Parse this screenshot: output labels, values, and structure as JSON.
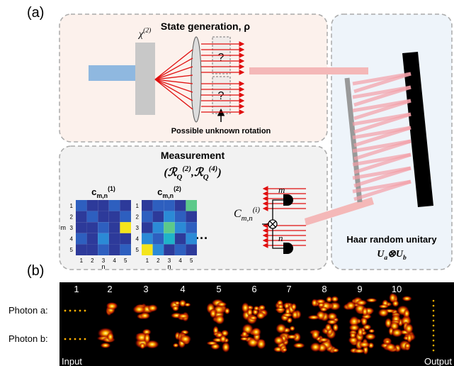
{
  "panel_a": {
    "label": "(a)",
    "state_generation": {
      "title": "State generation, ρ",
      "crystal": "χ",
      "crystal_sup": "(2)",
      "unknown": [
        "?",
        "?"
      ],
      "rotation_label": "Possible unknown rotation"
    },
    "measurement": {
      "title": "Measurement",
      "formula": {
        "open": "(",
        "terms": [
          {
            "base": "ℛ",
            "sub": "Q",
            "sup": "(2)"
          },
          {
            "base": "ℛ",
            "sub": "Q",
            "sup": "(4)"
          }
        ],
        "sep": ",",
        "close": ")"
      },
      "heatmaps": [
        {
          "symbol": "c",
          "sup": "(1)",
          "sub": "m,n",
          "row_ticks": [
            "1",
            "2",
            "3",
            "4",
            "5"
          ],
          "col_ticks": [
            "1",
            "2",
            "3",
            "4",
            "5"
          ],
          "row_label": "m",
          "col_label": "n"
        },
        {
          "symbol": "c",
          "sup": "(2)",
          "sub": "m,n",
          "row_ticks": [
            "1",
            "2",
            "3",
            "4",
            "5"
          ],
          "col_ticks": [
            "1",
            "2",
            "3",
            "4",
            "5"
          ],
          "col_label": "n"
        }
      ],
      "ellipsis": "···",
      "coincidence": {
        "symbol": "C",
        "sup": "(i)",
        "sub": "m,n",
        "detectors": [
          "m",
          "n"
        ]
      }
    },
    "unitary": {
      "title": "Haar random unitary",
      "formula": {
        "terms": [
          {
            "base": "U",
            "sub": "a"
          },
          {
            "base": "U",
            "sub": "b"
          }
        ],
        "op": "⊗"
      }
    }
  },
  "panel_b": {
    "label": "(b)",
    "columns": [
      "1",
      "2",
      "3",
      "4",
      "5",
      "6",
      "7",
      "8",
      "9",
      "10"
    ],
    "rows": [
      "Photon a:",
      "Photon b:"
    ],
    "start": "Input",
    "end": "Output"
  }
}
